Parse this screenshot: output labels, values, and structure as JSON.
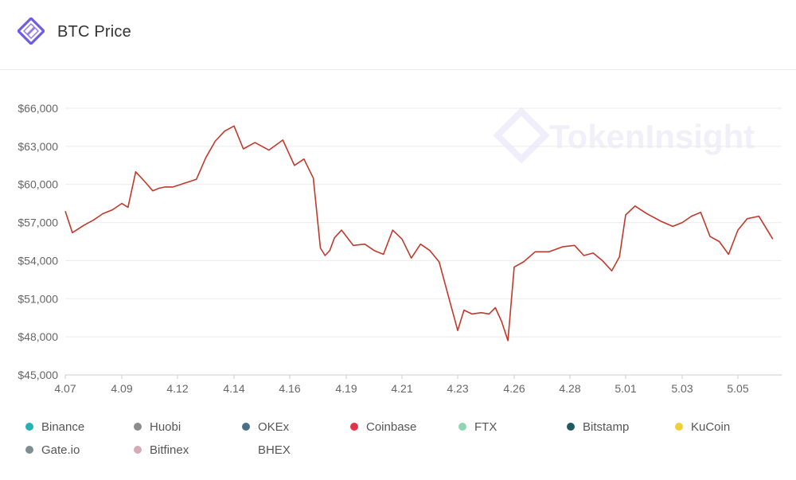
{
  "header": {
    "title": "BTC Price",
    "logo_icon": "tokeninsight-logo-icon"
  },
  "watermark": {
    "text": "TokenInsight"
  },
  "colors": {
    "line": "#c0392b",
    "grid": "#ebebeb",
    "axis_text": "#666666",
    "brand": "#6c5ce7"
  },
  "chart_data": {
    "type": "line",
    "title": "BTC Price",
    "xlabel": "",
    "ylabel": "",
    "x_ticks": [
      "4.07",
      "4.09",
      "4.12",
      "4.14",
      "4.16",
      "4.19",
      "4.21",
      "4.23",
      "4.26",
      "4.28",
      "5.01",
      "5.03",
      "5.05"
    ],
    "y_ticks": [
      "$45,000",
      "$48,000",
      "$51,000",
      "$54,000",
      "$57,000",
      "$60,000",
      "$63,000",
      "$66,000"
    ],
    "ylim": [
      45000,
      66000
    ],
    "grid": true,
    "legend_position": "bottom",
    "series": [
      {
        "name": "Coinbase",
        "color": "#c0392b",
        "x": [
          "4.07",
          "4.07",
          "4.08",
          "4.08",
          "4.08",
          "4.09",
          "4.09",
          "4.09",
          "4.10",
          "4.10",
          "4.11",
          "4.11",
          "4.11",
          "4.12",
          "4.12",
          "4.13",
          "4.13",
          "4.13",
          "4.14",
          "4.14",
          "4.14",
          "4.15",
          "4.15",
          "4.16",
          "4.16",
          "4.17",
          "4.17",
          "4.18",
          "4.18",
          "4.18",
          "4.18",
          "4.19",
          "4.19",
          "4.20",
          "4.20",
          "4.20",
          "4.21",
          "4.21",
          "4.21",
          "4.22",
          "4.22",
          "4.22",
          "4.23",
          "4.23",
          "4.23",
          "4.24",
          "4.24",
          "4.25",
          "4.25",
          "4.25",
          "4.26",
          "4.26",
          "4.26",
          "4.27",
          "4.27",
          "4.28",
          "4.28",
          "4.29",
          "4.29",
          "4.30",
          "4.30",
          "5.01",
          "5.01",
          "5.01",
          "5.02",
          "5.02",
          "5.03",
          "5.03",
          "5.03",
          "5.04",
          "5.04",
          "5.04",
          "5.05",
          "5.05",
          "5.05",
          "5.06",
          "5.06"
        ],
        "values": [
          57900,
          56200,
          56800,
          57200,
          57700,
          58000,
          58500,
          58200,
          61000,
          60200,
          59500,
          59700,
          59800,
          59800,
          60100,
          60400,
          62100,
          63400,
          64200,
          64600,
          62800,
          63300,
          62700,
          63500,
          61500,
          62000,
          60500,
          55000,
          54400,
          54800,
          55800,
          56400,
          55200,
          55300,
          54800,
          54500,
          56400,
          55700,
          54200,
          55300,
          54800,
          53900,
          51200,
          48500,
          50100,
          49800,
          49900,
          49800,
          50300,
          49200,
          47700,
          53500,
          53900,
          54700,
          54700,
          55100,
          55200,
          54400,
          54600,
          54000,
          53200,
          54300,
          57600,
          58300,
          57700,
          57100,
          56700,
          57000,
          57500,
          57800,
          55900,
          55500,
          54500,
          56400,
          57300,
          57500,
          55700
        ]
      }
    ]
  },
  "legend": {
    "items": [
      {
        "label": "Binance",
        "color": "#26b0b9"
      },
      {
        "label": "Huobi",
        "color": "#8c8c8c"
      },
      {
        "label": "OKEx",
        "color": "#4a6f86"
      },
      {
        "label": "Coinbase",
        "color": "#e3334c"
      },
      {
        "label": "FTX",
        "color": "#8fd5b1"
      },
      {
        "label": "Bitstamp",
        "color": "#1f5a5d"
      },
      {
        "label": "KuCoin",
        "color": "#f1cf3b"
      },
      {
        "label": "Gate.io",
        "color": "#7d8e95"
      },
      {
        "label": "Bitfinex",
        "color": "#d7aab5"
      },
      {
        "label": "BHEX",
        "color": ""
      }
    ]
  }
}
